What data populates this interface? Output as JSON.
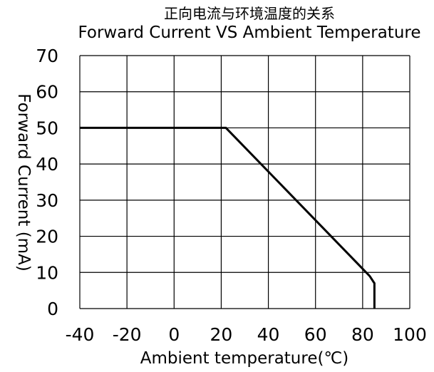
{
  "chart_data": {
    "type": "line",
    "title": "正向电流与环境温度的关系",
    "subtitle": "Forward Current VS Ambient Temperature",
    "xlabel": "Ambient temperature(℃)",
    "ylabel": "Forward Current  (mA)",
    "xlim": [
      -40,
      100
    ],
    "ylim": [
      0,
      70
    ],
    "x_ticks": [
      -40,
      -20,
      0,
      20,
      40,
      60,
      80,
      100
    ],
    "y_ticks": [
      0,
      10,
      20,
      30,
      40,
      50,
      60,
      70
    ],
    "grid": true,
    "series": [
      {
        "x": [
          -40,
          22,
          83,
          85,
          85
        ],
        "y": [
          50,
          50,
          9,
          7,
          0
        ],
        "color": "#000000"
      }
    ]
  }
}
